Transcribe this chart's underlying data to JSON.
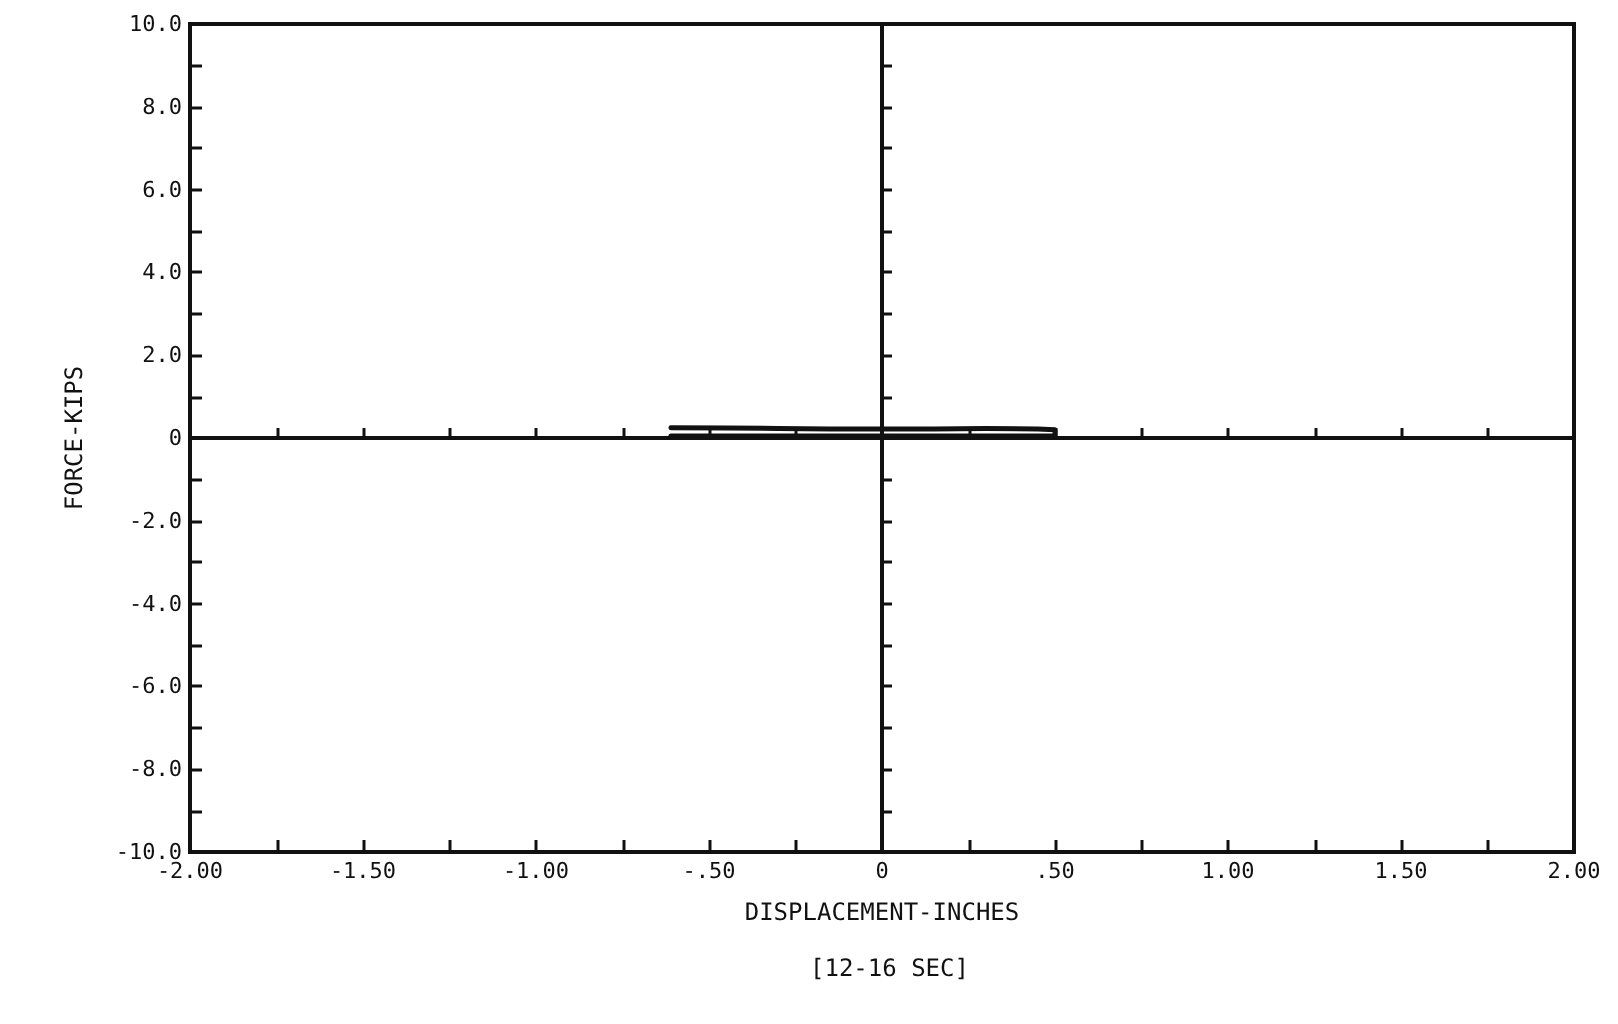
{
  "chart_data": {
    "type": "line",
    "xlabel": "DISPLACEMENT-INCHES",
    "ylabel": "FORCE-KIPS",
    "annotations": [
      "[12-16 SEC]"
    ],
    "x": [
      -0.61,
      -0.45,
      -0.3,
      -0.15,
      0,
      0.15,
      0.3,
      0.45,
      0.5,
      0.5,
      0.45,
      0.3,
      0.15,
      0,
      -0.15,
      -0.3,
      -0.45,
      -0.61
    ],
    "series": [
      {
        "color": "#111111",
        "values": [
          0.25,
          0.24,
          0.23,
          0.22,
          0.22,
          0.22,
          0.23,
          0.22,
          0.2,
          0.05,
          0.05,
          0.05,
          0.05,
          0.05,
          0.05,
          0.05,
          0.05,
          0.05
        ]
      }
    ],
    "xlim": [
      -2,
      2
    ],
    "ylim": [
      -10,
      10
    ],
    "xticks": [
      {
        "value": -2,
        "label": "-2.00"
      },
      {
        "value": -1.75,
        "label": null
      },
      {
        "value": -1.5,
        "label": "-1.50"
      },
      {
        "value": -1.25,
        "label": null
      },
      {
        "value": -1,
        "label": "-1.00"
      },
      {
        "value": -0.75,
        "label": null
      },
      {
        "value": -0.5,
        "label": "-.50"
      },
      {
        "value": -0.25,
        "label": null
      },
      {
        "value": 0,
        "label": "0"
      },
      {
        "value": 0.25,
        "label": null
      },
      {
        "value": 0.5,
        "label": ".50"
      },
      {
        "value": 0.75,
        "label": null
      },
      {
        "value": 1,
        "label": "1.00"
      },
      {
        "value": 1.25,
        "label": null
      },
      {
        "value": 1.5,
        "label": "1.50"
      },
      {
        "value": 1.75,
        "label": null
      },
      {
        "value": 2,
        "label": "2.00"
      }
    ],
    "yticks": [
      {
        "value": -10,
        "label": "-10.0"
      },
      {
        "value": -9,
        "label": null
      },
      {
        "value": -8,
        "label": "-8.0"
      },
      {
        "value": -7,
        "label": null
      },
      {
        "value": -6,
        "label": "-6.0"
      },
      {
        "value": -5,
        "label": null
      },
      {
        "value": -4,
        "label": "-4.0"
      },
      {
        "value": -3,
        "label": null
      },
      {
        "value": -2,
        "label": "-2.0"
      },
      {
        "value": -1,
        "label": null
      },
      {
        "value": 0,
        "label": "0"
      },
      {
        "value": 1,
        "label": null
      },
      {
        "value": 2,
        "label": "2.0"
      },
      {
        "value": 3,
        "label": null
      },
      {
        "value": 4,
        "label": "4.0"
      },
      {
        "value": 5,
        "label": null
      },
      {
        "value": 6,
        "label": "6.0"
      },
      {
        "value": 7,
        "label": null
      },
      {
        "value": 8,
        "label": "8.0"
      },
      {
        "value": 9,
        "label": null
      },
      {
        "value": 10,
        "label": "10.0"
      }
    ],
    "marker": "none",
    "line_style": "solid"
  }
}
